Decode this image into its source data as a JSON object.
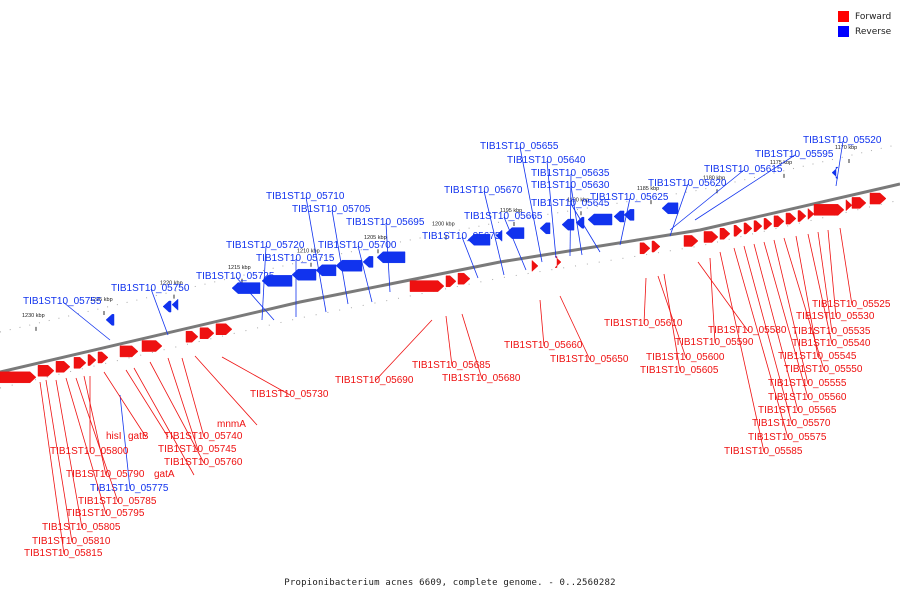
{
  "caption": "Propionibacterium acnes 6609, complete genome. - 0..2560282",
  "legend": [
    {
      "label": "Forward",
      "color": "#ff0000"
    },
    {
      "label": "Reverse",
      "color": "#0000ff"
    }
  ],
  "colors": {
    "forward": "#ee1111",
    "reverse": "#1133ee",
    "backbone": "#7a7a7a"
  },
  "ticks": [
    "1230 kbp",
    "1225 kbp",
    "1220 kbp",
    "1215 kbp",
    "1210 kbp",
    "1205 kbp",
    "1200 kbp",
    "1195 kbp",
    "1190 kbp",
    "1185 kbp",
    "1180 kbp",
    "1175 kbp",
    "1170 kbp"
  ],
  "reverse_labels": [
    "TIB1ST10_05755",
    "TIB1ST10_05750",
    "TIB1ST10_05725",
    "TIB1ST10_05720",
    "TIB1ST10_05715",
    "TIB1ST10_05710",
    "TIB1ST10_05705",
    "TIB1ST10_05700",
    "TIB1ST10_05695",
    "TIB1ST10_05675",
    "TIB1ST10_05670",
    "TIB1ST10_05665",
    "TIB1ST10_05655",
    "TIB1ST10_05640",
    "TIB1ST10_05635",
    "TIB1ST10_05630",
    "TIB1ST10_05645",
    "TIB1ST10_05625",
    "TIB1ST10_05620",
    "TIB1ST10_05615",
    "TIB1ST10_05595",
    "TIB1ST10_05520",
    "TIB1ST10_05775"
  ],
  "forward_labels": [
    "TIB1ST10_05730",
    "mnmA",
    "TIB1ST10_05740",
    "TIB1ST10_05745",
    "TIB1ST10_05760",
    "gatA",
    "gatB",
    "hisI",
    "TIB1ST10_05800",
    "TIB1ST10_05790",
    "TIB1ST10_05785",
    "TIB1ST10_05795",
    "TIB1ST10_05805",
    "TIB1ST10_05810",
    "TIB1ST10_05815",
    "TIB1ST10_05690",
    "TIB1ST10_05685",
    "TIB1ST10_05680",
    "TIB1ST10_05660",
    "TIB1ST10_05650",
    "TIB1ST10_05610",
    "TIB1ST10_05600",
    "TIB1ST10_05605",
    "TIB1ST10_05580",
    "TIB1ST10_05590",
    "TIB1ST10_05525",
    "TIB1ST10_05530",
    "TIB1ST10_05535",
    "TIB1ST10_05540",
    "TIB1ST10_05545",
    "TIB1ST10_05550",
    "TIB1ST10_05555",
    "TIB1ST10_05560",
    "TIB1ST10_05565",
    "TIB1ST10_05570",
    "TIB1ST10_05575",
    "TIB1ST10_05585"
  ]
}
